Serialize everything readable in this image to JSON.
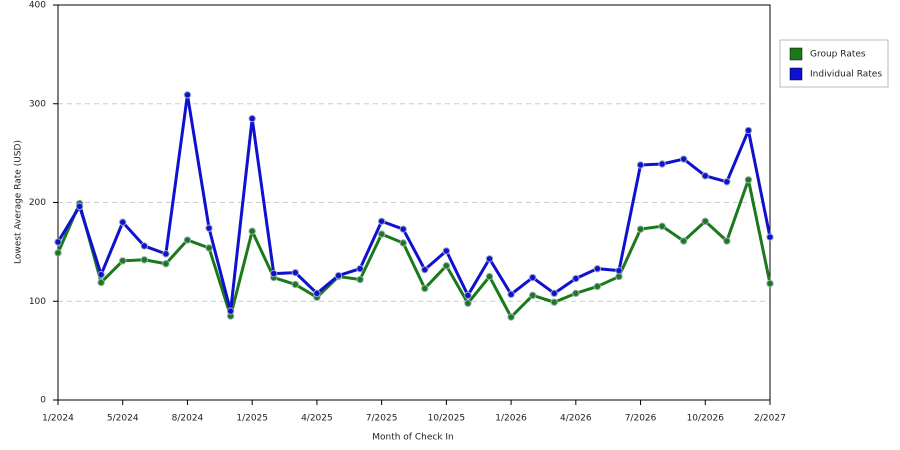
{
  "chart_data": {
    "type": "line",
    "x_label": "Month of Check In",
    "y_label": "Lowest Average Rate (USD)",
    "categories": [
      "1/2024",
      null,
      null,
      "5/2024",
      null,
      null,
      "8/2024",
      null,
      null,
      "1/2025",
      null,
      null,
      "4/2025",
      null,
      null,
      "7/2025",
      null,
      null,
      "10/2025",
      null,
      null,
      "1/2026",
      null,
      null,
      "4/2026",
      null,
      null,
      "7/2026",
      null,
      null,
      "10/2026",
      null,
      null,
      "2/2027"
    ],
    "series": [
      {
        "name": "Group Rates",
        "color": "#1a7a1a",
        "values": [
          149,
          199,
          119,
          141,
          142,
          138,
          162,
          154,
          85,
          171,
          124,
          117,
          104,
          125,
          122,
          168,
          159,
          113,
          136,
          98,
          125,
          84,
          106,
          99,
          108,
          115,
          125,
          173,
          176,
          161,
          181,
          161,
          223,
          118
        ]
      },
      {
        "name": "Individual Rates",
        "color": "#1010d0",
        "values": [
          160,
          196,
          127,
          180,
          156,
          148,
          309,
          174,
          90,
          285,
          128,
          129,
          108,
          126,
          133,
          181,
          173,
          132,
          151,
          106,
          143,
          107,
          124,
          108,
          123,
          133,
          131,
          238,
          239,
          244,
          227,
          221,
          273,
          165
        ]
      }
    ],
    "ylim": [
      0,
      400
    ],
    "yticks": [
      0,
      100,
      200,
      300,
      400
    ],
    "grid": true,
    "legend": "right"
  }
}
